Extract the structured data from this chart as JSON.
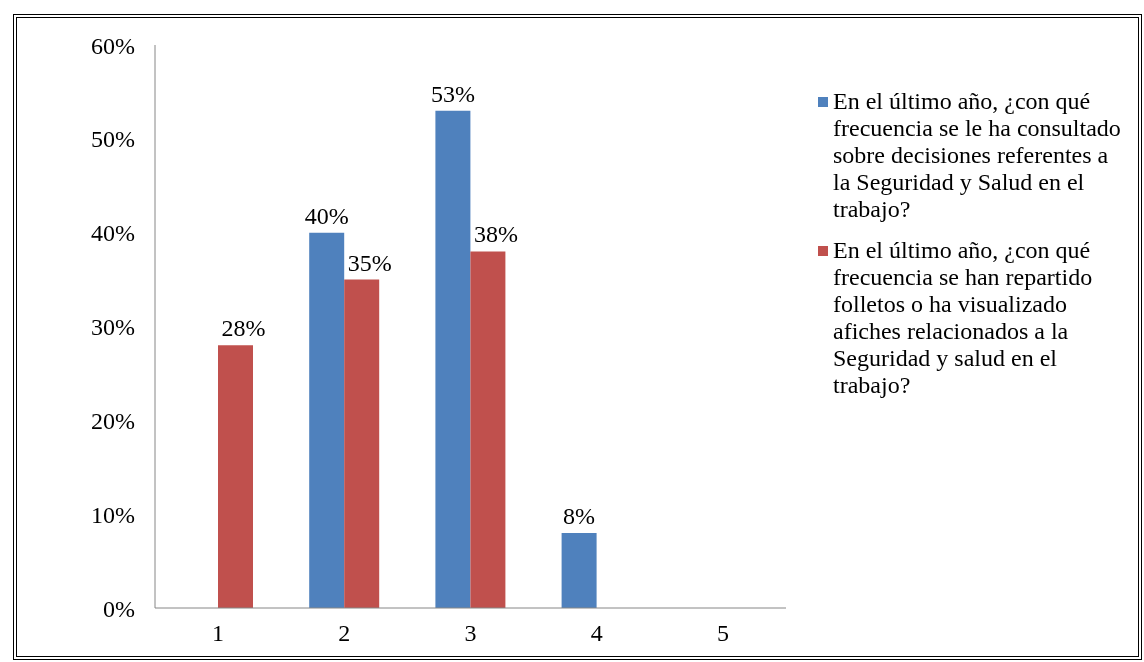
{
  "chart_data": {
    "type": "bar",
    "categories": [
      "1",
      "2",
      "3",
      "4",
      "5"
    ],
    "series": [
      {
        "name": "En el último año, ¿con qué frecuencia se le ha consultado sobre decisiones referentes a la Seguridad y Salud en el trabajo?",
        "color": "#4f81bd",
        "values": [
          null,
          40,
          53,
          8,
          null
        ],
        "value_labels": [
          null,
          "40%",
          "53%",
          "8%",
          null
        ]
      },
      {
        "name": "En el último año, ¿con qué frecuencia se han repartido folletos o ha visualizado afiches relacionados a la Seguridad y salud en el trabajo?",
        "color": "#c0504d",
        "values": [
          28,
          35,
          38,
          null,
          null
        ],
        "value_labels": [
          "28%",
          "35%",
          "38%",
          null,
          null
        ]
      }
    ],
    "ylim": [
      0,
      60
    ],
    "yticks": [
      {
        "value": 0,
        "label": "0%"
      },
      {
        "value": 10,
        "label": "10%"
      },
      {
        "value": 20,
        "label": "20%"
      },
      {
        "value": 30,
        "label": "30%"
      },
      {
        "value": 40,
        "label": "40%"
      },
      {
        "value": 50,
        "label": "50%"
      },
      {
        "value": 60,
        "label": "60%"
      }
    ],
    "legend": "right"
  }
}
